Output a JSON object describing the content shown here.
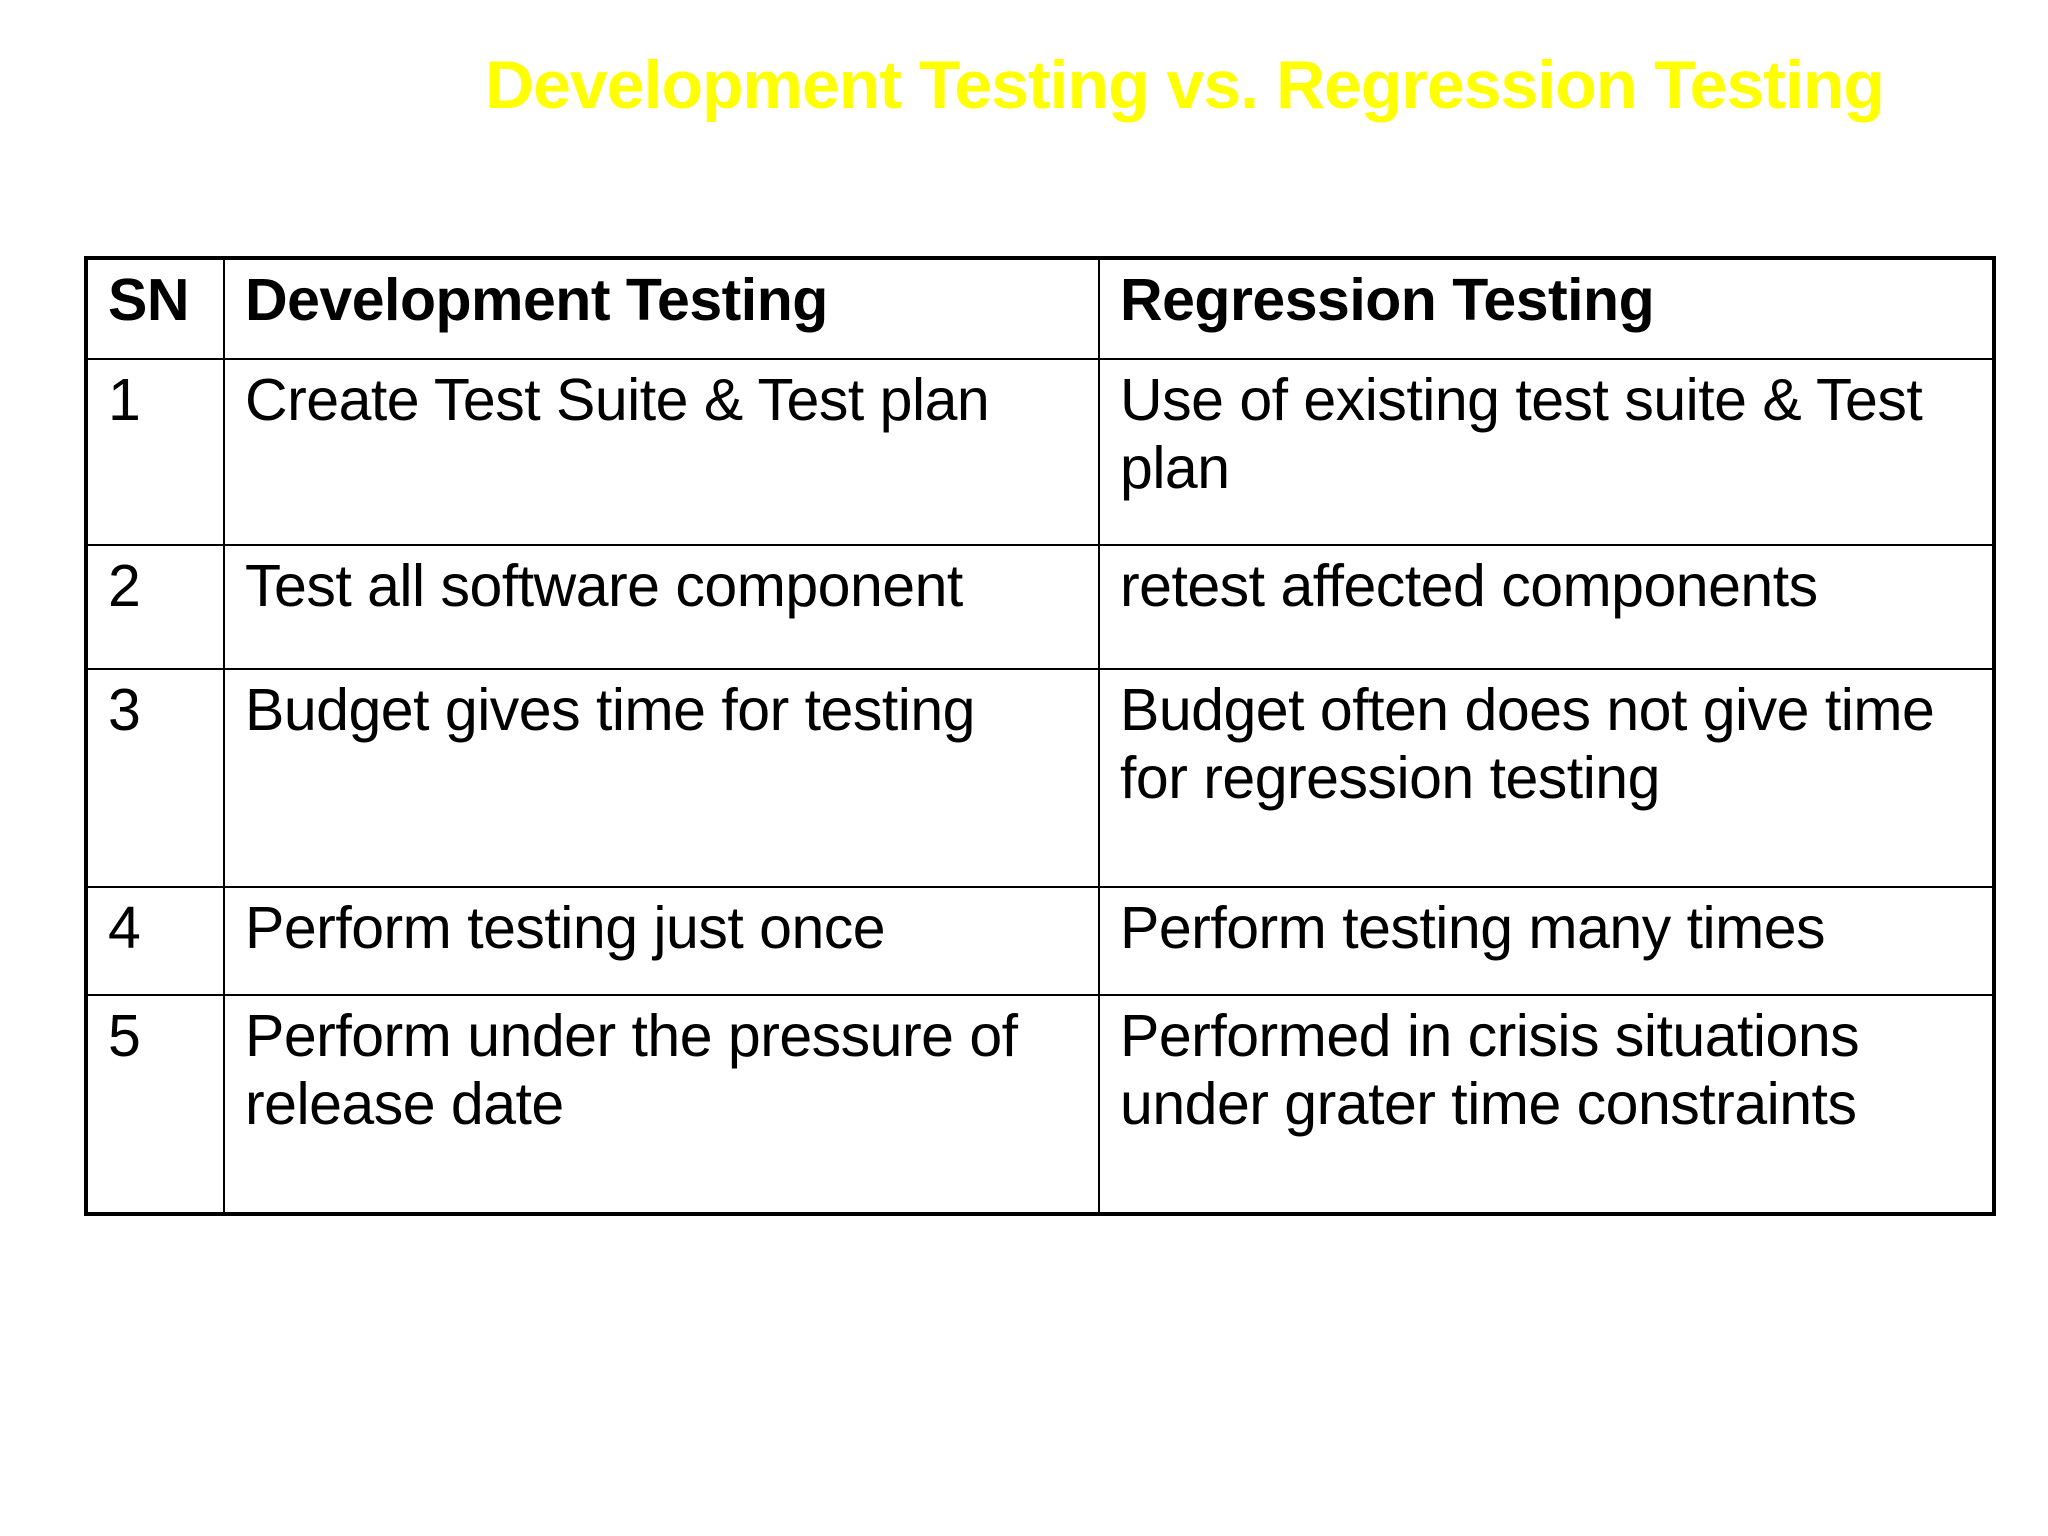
{
  "slide": {
    "title": "Development Testing vs. Regression Testing",
    "title_color": "#ffff00"
  },
  "table": {
    "headers": [
      "SN",
      "Development Testing",
      "Regression Testing"
    ],
    "rows": [
      {
        "sn": "1",
        "development": "Create Test Suite & Test plan",
        "regression": "Use of existing test suite & Test plan"
      },
      {
        "sn": "2",
        "development": "Test all software component",
        "regression": "retest affected components"
      },
      {
        "sn": "3",
        "development": "Budget gives time for testing",
        "regression": "Budget often does not give time for regression testing"
      },
      {
        "sn": "4",
        "development": "Perform testing just once",
        "regression": "Perform testing many times"
      },
      {
        "sn": "5",
        "development": "Perform under the pressure of release date",
        "regression": "Performed in crisis situations under grater time constraints"
      }
    ]
  }
}
